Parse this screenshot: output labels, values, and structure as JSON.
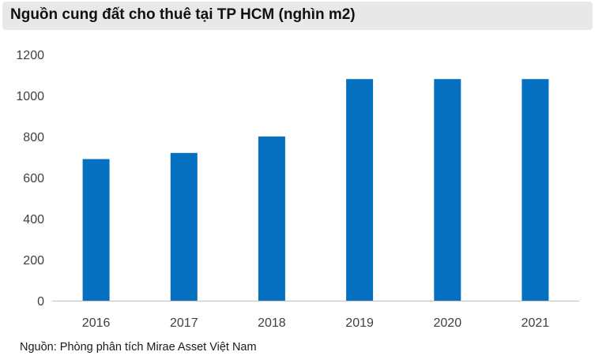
{
  "chart_data": {
    "type": "bar",
    "title": "Nguồn cung đất cho thuê tại TP HCM (nghìn m2)",
    "categories": [
      "2016",
      "2017",
      "2018",
      "2019",
      "2020",
      "2021"
    ],
    "values": [
      690,
      720,
      800,
      1080,
      1080,
      1080
    ],
    "ylim": [
      0,
      1200
    ],
    "yticks": [
      0,
      200,
      400,
      600,
      800,
      1000,
      1200
    ],
    "xlabel": "",
    "ylabel": "",
    "grid": false,
    "bar_color": "#0570c0",
    "axis_color": "#bfbfbf",
    "source": "Nguồn: Phòng phân tích Mirae Asset Việt Nam"
  }
}
